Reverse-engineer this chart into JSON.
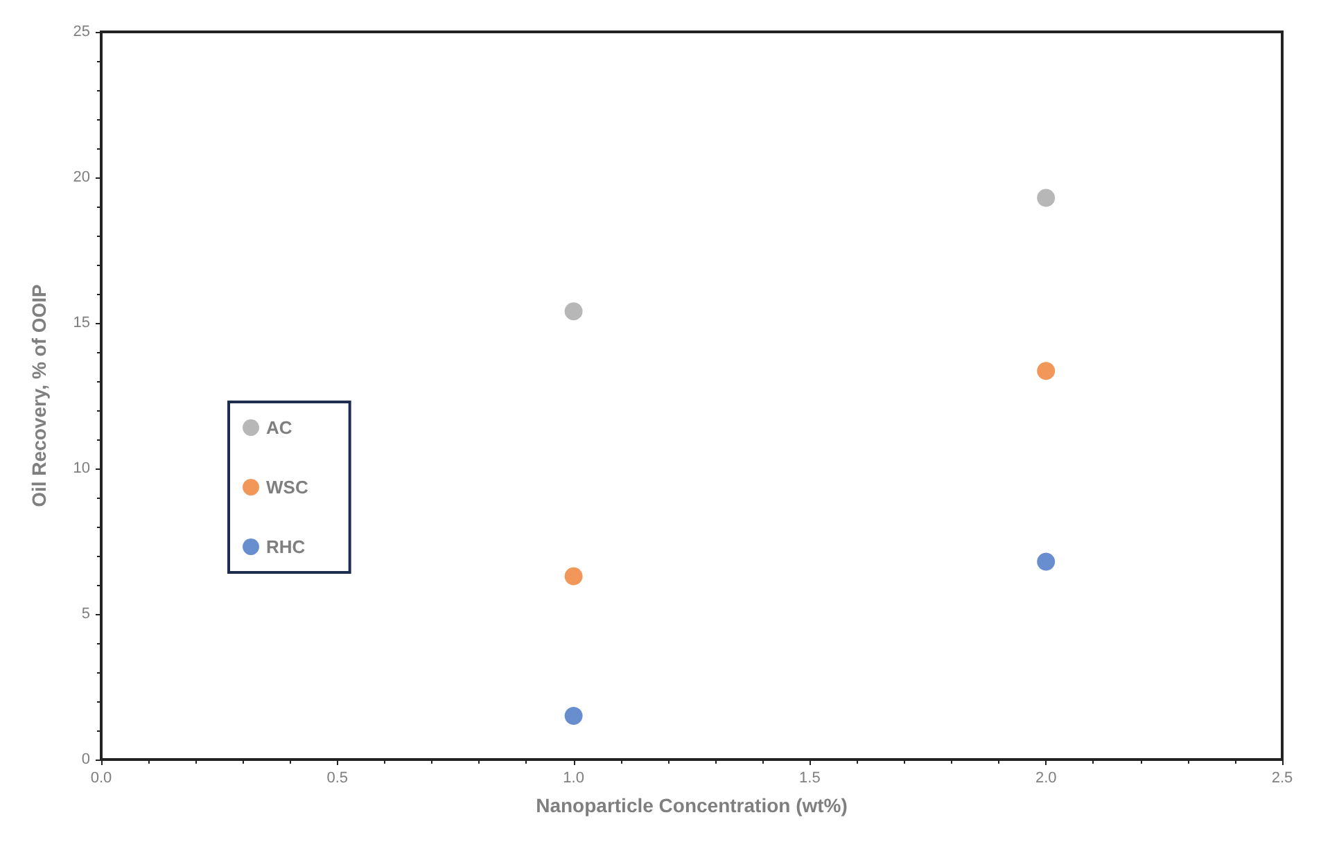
{
  "chart_data": {
    "type": "scatter",
    "xlabel": "Nanoparticle Concentration (wt%)",
    "ylabel": "Oil Recovery, % of OOIP",
    "x": [
      1.0,
      2.0
    ],
    "series": [
      {
        "name": "AC",
        "color": "#a5a5a5",
        "values": [
          15.4,
          19.3
        ]
      },
      {
        "name": "WSC",
        "color": "#ed7d31",
        "values": [
          6.3,
          13.35
        ]
      },
      {
        "name": "RHC",
        "color": "#4472c4",
        "values": [
          1.5,
          6.8
        ]
      }
    ],
    "xlim": [
      0,
      2.5
    ],
    "xticks": [
      {
        "value": 0,
        "label": "0.0"
      },
      {
        "value": 0.5,
        "label": "0.5"
      },
      {
        "value": 1,
        "label": "1.0"
      },
      {
        "value": 1.5,
        "label": "1.5"
      },
      {
        "value": 2,
        "label": "2.0"
      },
      {
        "value": 2.5,
        "label": "2.5"
      }
    ],
    "ylim": [
      0,
      25
    ],
    "yticks": [
      0,
      5,
      10,
      15,
      20,
      25
    ],
    "marker": "circle",
    "legend": "left",
    "grid": false
  }
}
